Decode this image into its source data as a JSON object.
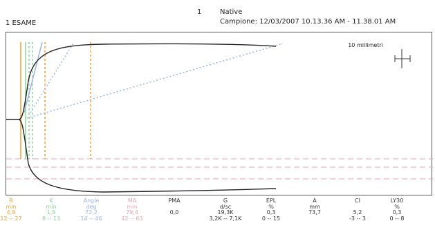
{
  "header": {
    "exam_label": "1 ESAME",
    "channel_number": "1",
    "mode": "Native",
    "sample_label": "Campione: 12/03/2007 10.13.36 AM - 11.38.01 AM"
  },
  "plot": {
    "scale_label": "10 millimetri",
    "colors": {
      "trace": "#222222",
      "r_marker": "#f2a13a",
      "k_marker": "#8fd49a",
      "angle_marker": "#9bb5e3",
      "ma_marker": "#e6a7b7",
      "ref_dashed": "#e8a0b0"
    }
  },
  "parameters": [
    {
      "name": "R",
      "unit": "min",
      "value": "4,9",
      "range": "12 -- 27",
      "color": "#f2a13a"
    },
    {
      "name": "K",
      "unit": "min",
      "value": "1,9",
      "range": "8 -- 13",
      "color": "#8fd49a"
    },
    {
      "name": "Angle",
      "unit": "deg",
      "value": "72,2",
      "range": "14 -- 46",
      "color": "#9bb5e3"
    },
    {
      "name": "MA",
      "unit": "mm",
      "value": "79,4",
      "range": "42 -- 63",
      "color": "#e6a7b7"
    },
    {
      "name": "PMA",
      "unit": "",
      "value": "0,0",
      "range": "",
      "color": "#333333"
    },
    {
      "name": "G",
      "unit": "d/sc",
      "value": "19,3K",
      "range": "3,2K -- 7,1K",
      "color": "#333333"
    },
    {
      "name": "EPL",
      "unit": "%",
      "value": "0,3",
      "range": "0 -- 15",
      "color": "#333333"
    },
    {
      "name": "A",
      "unit": "mm",
      "value": "73,7",
      "range": "",
      "color": "#333333"
    },
    {
      "name": "CI",
      "unit": "",
      "value": "5,2",
      "range": "-3 -- 3",
      "color": "#333333"
    },
    {
      "name": "LY30",
      "unit": "%",
      "value": "0,3",
      "range": "0 -- 8",
      "color": "#333333"
    }
  ]
}
